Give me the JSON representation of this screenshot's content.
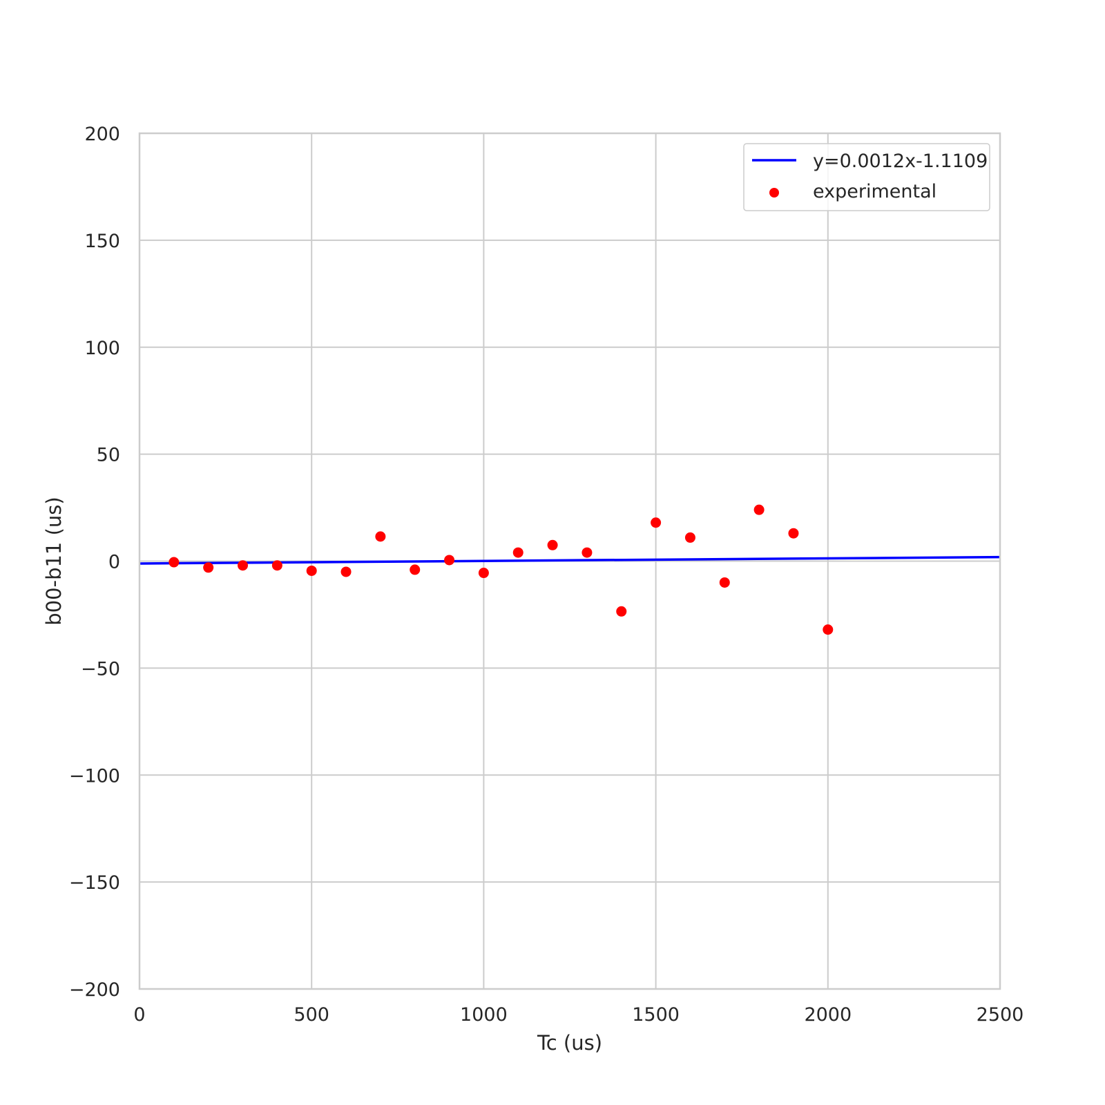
{
  "chart_data": {
    "type": "scatter",
    "title": "",
    "xlabel": "Tc (us)",
    "ylabel": "b00-b11 (us)",
    "xlim": [
      0,
      2500
    ],
    "ylim": [
      -200,
      200
    ],
    "xticks": [
      0,
      500,
      1000,
      1500,
      2000,
      2500
    ],
    "yticks": [
      -200,
      -150,
      -100,
      -50,
      0,
      50,
      100,
      150,
      200
    ],
    "xtick_labels": [
      "0",
      "500",
      "1000",
      "1500",
      "2000",
      "2500"
    ],
    "ytick_labels": [
      "−200",
      "−150",
      "−100",
      "−50",
      "0",
      "50",
      "100",
      "150",
      "200"
    ],
    "grid": true,
    "legend_position": "top-right",
    "fit_line": {
      "name": "y=0.0012x-1.1109",
      "slope": 0.0012,
      "intercept": -1.1109,
      "color": "#0000ff"
    },
    "series": [
      {
        "name": "experimental",
        "color": "#ff0000",
        "x": [
          100,
          200,
          300,
          400,
          500,
          600,
          700,
          800,
          900,
          1000,
          1100,
          1200,
          1300,
          1400,
          1500,
          1600,
          1700,
          1800,
          1900,
          2000
        ],
        "y": [
          -0.5,
          -3,
          -2,
          -2,
          -4.5,
          -5,
          11.5,
          -4,
          0.5,
          -5.5,
          4,
          7.5,
          4,
          -23.5,
          18,
          11,
          -10,
          24,
          13,
          -32
        ]
      }
    ]
  }
}
